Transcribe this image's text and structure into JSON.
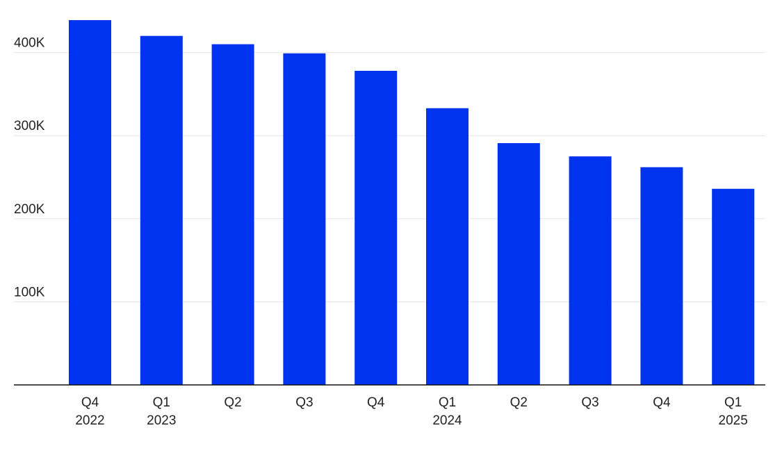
{
  "chart_data": {
    "type": "bar",
    "title": "",
    "xlabel": "",
    "ylabel": "",
    "ylim": [
      0,
      440000
    ],
    "grid": true,
    "legend": "none",
    "bar_color": "#0033f0",
    "y_ticks": [
      {
        "value": 100000,
        "label": "100K"
      },
      {
        "value": 200000,
        "label": "200K"
      },
      {
        "value": 300000,
        "label": "300K"
      },
      {
        "value": 400000,
        "label": "400K"
      }
    ],
    "categories": [
      {
        "quarter": "Q4",
        "year": "2022"
      },
      {
        "quarter": "Q1",
        "year": "2023"
      },
      {
        "quarter": "Q2",
        "year": ""
      },
      {
        "quarter": "Q3",
        "year": ""
      },
      {
        "quarter": "Q4",
        "year": ""
      },
      {
        "quarter": "Q1",
        "year": "2024"
      },
      {
        "quarter": "Q2",
        "year": ""
      },
      {
        "quarter": "Q3",
        "year": ""
      },
      {
        "quarter": "Q4",
        "year": ""
      },
      {
        "quarter": "Q1",
        "year": "2025"
      }
    ],
    "values": [
      439000,
      420000,
      410000,
      399000,
      378000,
      333000,
      291000,
      275000,
      262000,
      236000
    ]
  }
}
